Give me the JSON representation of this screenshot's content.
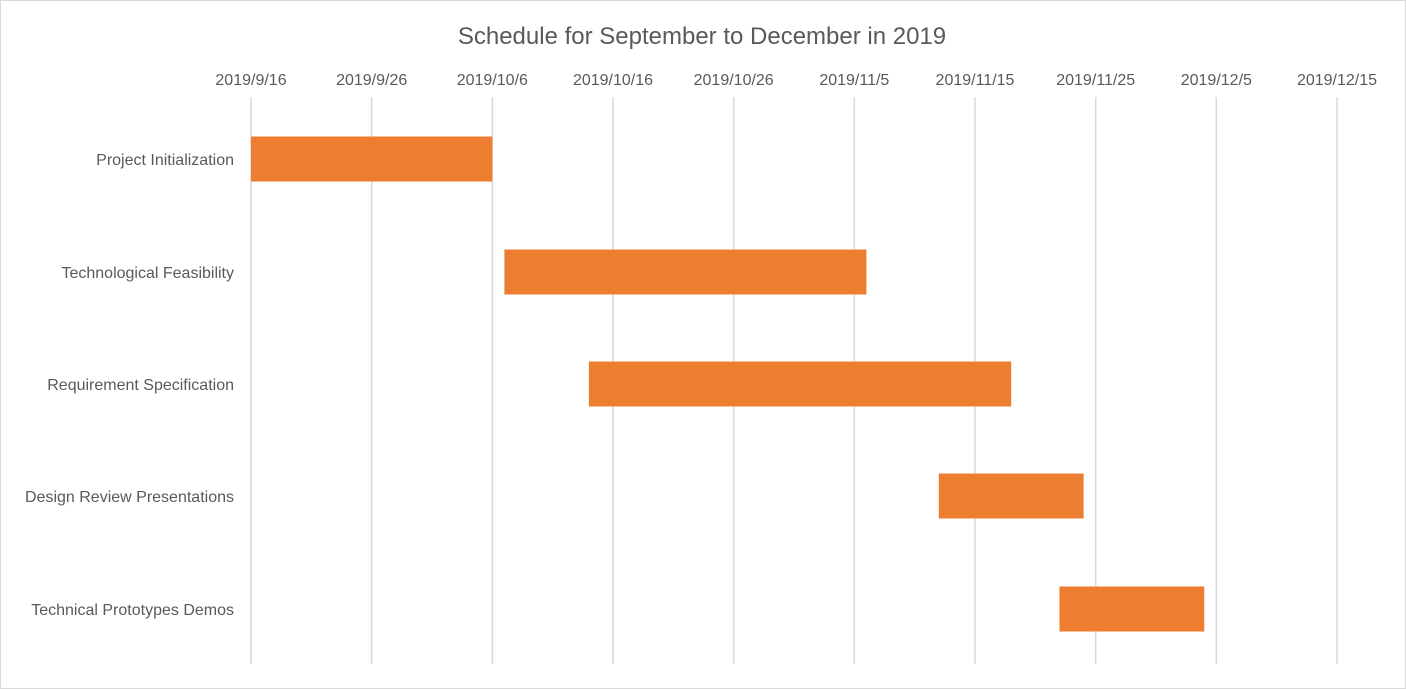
{
  "chart_data": {
    "type": "bar",
    "orientation": "horizontal",
    "stacked_gantt": true,
    "title": "Schedule for September to December in 2019",
    "x_axis_position": "top",
    "grid": true,
    "xlim": [
      "2019-09-16",
      "2019-12-15"
    ],
    "x_ticks": [
      "2019/9/16",
      "2019/9/26",
      "2019/10/6",
      "2019/10/16",
      "2019/10/26",
      "2019/11/5",
      "2019/11/15",
      "2019/11/25",
      "2019/12/5",
      "2019/12/15"
    ],
    "tasks": [
      {
        "name": "Project Initialization",
        "start": "2019-09-16",
        "end": "2019-10-06"
      },
      {
        "name": "Technological Feasibility",
        "start": "2019-10-07",
        "end": "2019-11-06"
      },
      {
        "name": "Requirement Specification",
        "start": "2019-10-14",
        "end": "2019-11-18"
      },
      {
        "name": "Design Review Presentations",
        "start": "2019-11-12",
        "end": "2019-11-24"
      },
      {
        "name": "Technical Prototypes Demos",
        "start": "2019-11-22",
        "end": "2019-12-04"
      }
    ],
    "bar_color": "#ED7D31",
    "grid_color": "#d9d9d9"
  }
}
